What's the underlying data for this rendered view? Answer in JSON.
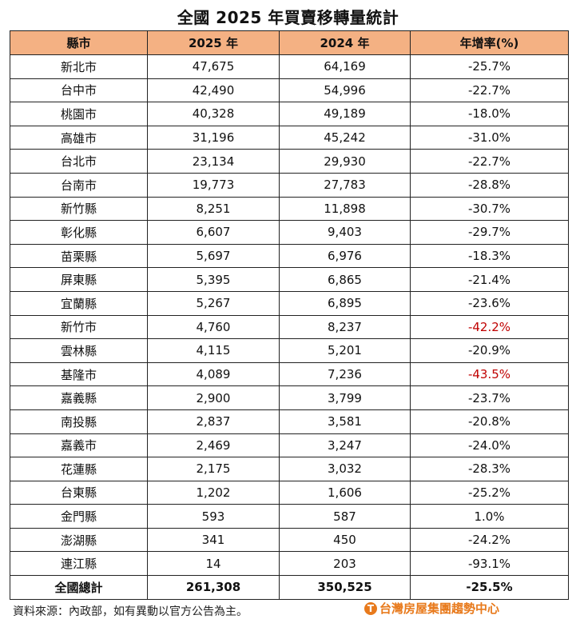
{
  "title": "全國 2025 年買賣移轉量統計",
  "headers": [
    "縣市",
    "2025 年",
    "2024 年",
    "年增率(%)"
  ],
  "rows": [
    {
      "city": "新北市",
      "y2025": "47,675",
      "y2024": "64,169",
      "rate": "-25.7%"
    },
    {
      "city": "台中市",
      "y2025": "42,490",
      "y2024": "54,996",
      "rate": "-22.7%"
    },
    {
      "city": "桃園市",
      "y2025": "40,328",
      "y2024": "49,189",
      "rate": "-18.0%"
    },
    {
      "city": "高雄市",
      "y2025": "31,196",
      "y2024": "45,242",
      "rate": "-31.0%"
    },
    {
      "city": "台北市",
      "y2025": "23,134",
      "y2024": "29,930",
      "rate": "-22.7%"
    },
    {
      "city": "台南市",
      "y2025": "19,773",
      "y2024": "27,783",
      "rate": "-28.8%"
    },
    {
      "city": "新竹縣",
      "y2025": "8,251",
      "y2024": "11,898",
      "rate": "-30.7%"
    },
    {
      "city": "彰化縣",
      "y2025": "6,607",
      "y2024": "9,403",
      "rate": "-29.7%"
    },
    {
      "city": "苗栗縣",
      "y2025": "5,697",
      "y2024": "6,976",
      "rate": "-18.3%"
    },
    {
      "city": "屏東縣",
      "y2025": "5,395",
      "y2024": "6,865",
      "rate": "-21.4%"
    },
    {
      "city": "宜蘭縣",
      "y2025": "5,267",
      "y2024": "6,895",
      "rate": "-23.6%"
    },
    {
      "city": "新竹市",
      "y2025": "4,760",
      "y2024": "8,237",
      "rate": "-42.2%",
      "highlight": true
    },
    {
      "city": "雲林縣",
      "y2025": "4,115",
      "y2024": "5,201",
      "rate": "-20.9%"
    },
    {
      "city": "基隆市",
      "y2025": "4,089",
      "y2024": "7,236",
      "rate": "-43.5%",
      "highlight": true
    },
    {
      "city": "嘉義縣",
      "y2025": "2,900",
      "y2024": "3,799",
      "rate": "-23.7%"
    },
    {
      "city": "南投縣",
      "y2025": "2,837",
      "y2024": "3,581",
      "rate": "-20.8%"
    },
    {
      "city": "嘉義市",
      "y2025": "2,469",
      "y2024": "3,247",
      "rate": "-24.0%"
    },
    {
      "city": "花蓮縣",
      "y2025": "2,175",
      "y2024": "3,032",
      "rate": "-28.3%"
    },
    {
      "city": "台東縣",
      "y2025": "1,202",
      "y2024": "1,606",
      "rate": "-25.2%"
    },
    {
      "city": "金門縣",
      "y2025": "593",
      "y2024": "587",
      "rate": "1.0%"
    },
    {
      "city": "澎湖縣",
      "y2025": "341",
      "y2024": "450",
      "rate": "-24.2%"
    },
    {
      "city": "連江縣",
      "y2025": "14",
      "y2024": "203",
      "rate": "-93.1%"
    }
  ],
  "total": {
    "city": "全國總計",
    "y2025": "261,308",
    "y2024": "350,525",
    "rate": "-25.5%"
  },
  "source": "資料來源：內政部，如有異動以官方公告為主。",
  "logo": {
    "mark": "T",
    "text": "台灣房屋集團趨勢中心"
  },
  "colors": {
    "header_bg": "#f4b183",
    "highlight": "#c00000",
    "logo": "#e87a1c"
  }
}
